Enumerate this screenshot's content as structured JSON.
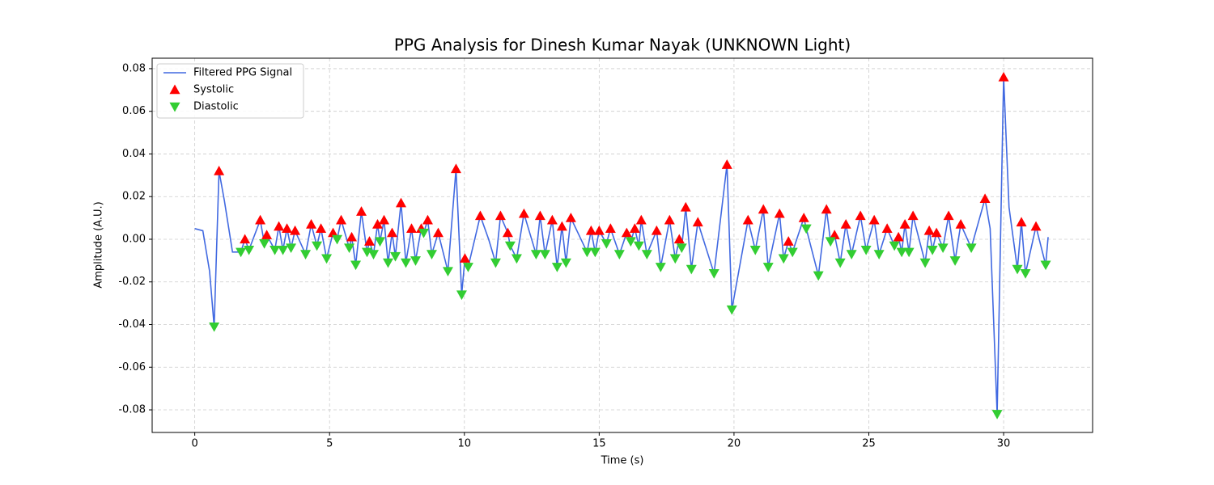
{
  "chart_data": {
    "type": "line",
    "title": "PPG Analysis for Dinesh Kumar Nayak (UNKNOWN Light)",
    "x_label": "Time (s)",
    "y_label": "Amplitude (A.U.)",
    "xlim": [
      -1.58,
      33.3
    ],
    "ylim": [
      -0.0906,
      0.0849
    ],
    "xticks": [
      0,
      5,
      10,
      15,
      20,
      25,
      30
    ],
    "yticks": [
      -0.08,
      -0.06,
      -0.04,
      -0.02,
      {
        "value": 0,
        "label": "0.00"
      },
      0.02,
      0.04,
      0.06,
      0.08
    ],
    "grid": true,
    "legend": "upper left",
    "series": [
      {
        "name": "Filtered PPG Signal",
        "color": "#4169e1",
        "marker": "none",
        "x": [
          0,
          0.3,
          0.55,
          0.72,
          0.9,
          1.1,
          1.4,
          1.71,
          1.86,
          2.01,
          2.43,
          2.58,
          2.67,
          2.97,
          3.12,
          3.27,
          3.42,
          3.57,
          3.72,
          4.11,
          4.32,
          4.53,
          4.68,
          4.89,
          5.13,
          5.28,
          5.43,
          5.73,
          5.82,
          5.97,
          6.18,
          6.39,
          6.48,
          6.63,
          6.78,
          6.87,
          7.02,
          7.17,
          7.32,
          7.44,
          7.65,
          7.83,
          8.04,
          8.19,
          8.4,
          8.49,
          8.64,
          8.79,
          9.03,
          9.39,
          9.69,
          9.9,
          10.02,
          10.14,
          10.59,
          10.9,
          11.16,
          11.34,
          11.61,
          11.7,
          11.94,
          12.21,
          12.66,
          12.81,
          12.99,
          13.26,
          13.44,
          13.62,
          13.77,
          13.95,
          14.55,
          14.7,
          14.85,
          15.0,
          15.27,
          15.42,
          15.75,
          16.02,
          16.17,
          16.32,
          16.47,
          16.56,
          16.77,
          17.13,
          17.28,
          17.61,
          17.82,
          17.97,
          18.06,
          18.21,
          18.42,
          18.66,
          19.26,
          19.74,
          19.92,
          20.52,
          20.79,
          21.09,
          21.27,
          21.69,
          21.84,
          22.02,
          22.17,
          22.59,
          22.68,
          23.13,
          23.43,
          23.58,
          23.73,
          23.94,
          24.15,
          24.36,
          24.69,
          24.9,
          25.2,
          25.38,
          25.68,
          25.95,
          26.1,
          26.22,
          26.34,
          26.49,
          26.64,
          27.09,
          27.24,
          27.36,
          27.51,
          27.75,
          27.96,
          28.2,
          28.41,
          28.8,
          29.31,
          29.5,
          29.76,
          30.0,
          30.2,
          30.51,
          30.66,
          30.81,
          31.2,
          31.56,
          31.65
        ],
        "values": [
          0.005,
          0.004,
          -0.015,
          -0.041,
          0.032,
          0.018,
          -0.006,
          -0.006,
          0.0,
          -0.005,
          0.009,
          -0.002,
          0.002,
          -0.005,
          0.006,
          -0.005,
          0.005,
          -0.004,
          0.004,
          -0.007,
          0.007,
          -0.003,
          0.005,
          -0.009,
          0.003,
          0.0,
          0.009,
          -0.004,
          0.001,
          -0.012,
          0.013,
          -0.006,
          -0.001,
          -0.007,
          0.007,
          -0.001,
          0.009,
          -0.011,
          0.003,
          -0.008,
          0.017,
          -0.011,
          0.005,
          -0.01,
          0.005,
          0.003,
          0.009,
          -0.007,
          0.003,
          -0.015,
          0.033,
          -0.026,
          -0.009,
          -0.013,
          0.011,
          0.0,
          -0.011,
          0.011,
          0.003,
          -0.003,
          -0.009,
          0.012,
          -0.007,
          0.011,
          -0.007,
          0.009,
          -0.013,
          0.006,
          -0.011,
          0.01,
          -0.006,
          0.004,
          -0.006,
          0.004,
          -0.002,
          0.005,
          -0.007,
          0.003,
          -0.001,
          0.005,
          -0.003,
          0.009,
          -0.007,
          0.004,
          -0.013,
          0.009,
          -0.009,
          0.0,
          -0.004,
          0.015,
          -0.014,
          0.008,
          -0.016,
          0.035,
          -0.033,
          0.009,
          -0.005,
          0.014,
          -0.013,
          0.012,
          -0.009,
          -0.001,
          -0.006,
          0.01,
          0.005,
          -0.017,
          0.014,
          -0.001,
          0.002,
          -0.011,
          0.007,
          -0.007,
          0.011,
          -0.005,
          0.009,
          -0.007,
          0.005,
          -0.003,
          0.001,
          -0.006,
          0.007,
          -0.006,
          0.011,
          -0.011,
          0.004,
          -0.005,
          0.003,
          -0.004,
          0.011,
          -0.01,
          0.007,
          -0.004,
          0.019,
          0.005,
          -0.082,
          0.076,
          0.015,
          -0.014,
          0.008,
          -0.016,
          0.006,
          -0.012,
          0.001
        ]
      },
      {
        "name": "Systolic",
        "color": "#ff0000",
        "marker": "up",
        "x": [
          0.9,
          1.86,
          2.43,
          2.67,
          3.12,
          3.42,
          3.72,
          4.32,
          4.68,
          5.13,
          5.43,
          5.82,
          6.18,
          6.48,
          6.78,
          7.02,
          7.32,
          7.65,
          8.04,
          8.4,
          8.64,
          9.03,
          9.69,
          10.02,
          10.59,
          11.34,
          11.61,
          12.21,
          12.81,
          13.26,
          13.62,
          13.95,
          14.7,
          15.0,
          15.42,
          16.02,
          16.32,
          16.56,
          17.13,
          17.61,
          17.97,
          18.21,
          18.66,
          19.74,
          20.52,
          21.09,
          21.69,
          22.02,
          22.59,
          23.43,
          23.73,
          24.15,
          24.69,
          25.2,
          25.68,
          26.1,
          26.34,
          26.64,
          27.24,
          27.51,
          27.96,
          28.41,
          29.31,
          30.0,
          30.66,
          31.2
        ],
        "values": [
          0.032,
          0.0,
          0.009,
          0.002,
          0.006,
          0.005,
          0.004,
          0.007,
          0.005,
          0.003,
          0.009,
          0.001,
          0.013,
          -0.001,
          0.007,
          0.009,
          0.003,
          0.017,
          0.005,
          0.005,
          0.009,
          0.003,
          0.033,
          -0.009,
          0.011,
          0.011,
          0.003,
          0.012,
          0.011,
          0.009,
          0.006,
          0.01,
          0.004,
          0.004,
          0.005,
          0.003,
          0.005,
          0.009,
          0.004,
          0.009,
          0.0,
          0.015,
          0.008,
          0.035,
          0.009,
          0.014,
          0.012,
          -0.001,
          0.01,
          0.014,
          0.002,
          0.007,
          0.011,
          0.009,
          0.005,
          0.001,
          0.007,
          0.011,
          0.004,
          0.003,
          0.011,
          0.007,
          0.019,
          0.076,
          0.008,
          0.006
        ]
      },
      {
        "name": "Diastolic",
        "color": "#32cd32",
        "marker": "down",
        "x": [
          0.72,
          1.71,
          2.01,
          2.58,
          2.97,
          3.27,
          3.57,
          4.11,
          4.53,
          4.89,
          5.28,
          5.73,
          5.97,
          6.39,
          6.63,
          6.87,
          7.17,
          7.44,
          7.83,
          8.19,
          8.49,
          8.79,
          9.39,
          9.9,
          10.14,
          11.16,
          11.7,
          11.94,
          12.66,
          12.99,
          13.44,
          13.77,
          14.55,
          14.85,
          15.27,
          15.75,
          16.17,
          16.47,
          16.77,
          17.28,
          17.82,
          18.06,
          18.42,
          19.26,
          19.92,
          20.79,
          21.27,
          21.84,
          22.17,
          22.68,
          23.13,
          23.58,
          23.94,
          24.36,
          24.9,
          25.38,
          25.95,
          26.22,
          26.49,
          27.09,
          27.36,
          27.75,
          28.2,
          28.8,
          29.76,
          30.51,
          30.81,
          31.56
        ],
        "values": [
          -0.041,
          -0.006,
          -0.005,
          -0.002,
          -0.005,
          -0.005,
          -0.004,
          -0.007,
          -0.003,
          -0.009,
          0.0,
          -0.004,
          -0.012,
          -0.006,
          -0.007,
          -0.001,
          -0.011,
          -0.008,
          -0.011,
          -0.01,
          0.003,
          -0.007,
          -0.015,
          -0.026,
          -0.013,
          -0.011,
          -0.003,
          -0.009,
          -0.007,
          -0.007,
          -0.013,
          -0.011,
          -0.006,
          -0.006,
          -0.002,
          -0.007,
          -0.001,
          -0.003,
          -0.007,
          -0.013,
          -0.009,
          -0.004,
          -0.014,
          -0.016,
          -0.033,
          -0.005,
          -0.013,
          -0.009,
          -0.006,
          0.005,
          -0.017,
          -0.001,
          -0.011,
          -0.007,
          -0.005,
          -0.007,
          -0.003,
          -0.006,
          -0.006,
          -0.011,
          -0.005,
          -0.004,
          -0.01,
          -0.004,
          -0.082,
          -0.014,
          -0.016,
          -0.012
        ]
      }
    ]
  }
}
